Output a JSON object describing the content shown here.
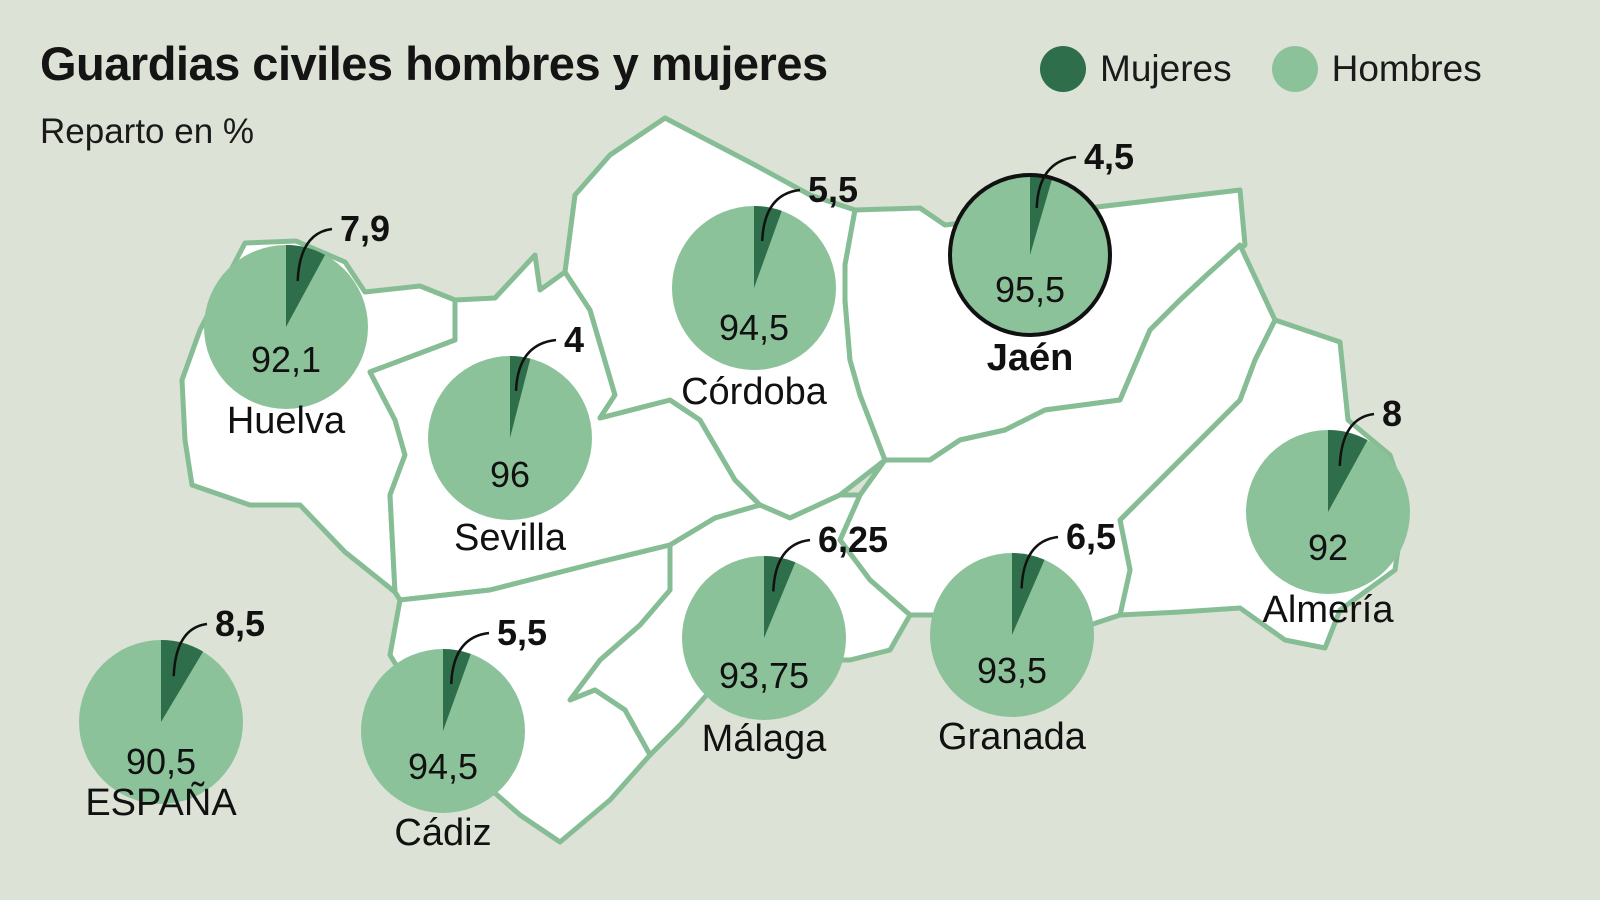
{
  "colors": {
    "background": "#dde2d6",
    "map_fill": "#ffffff",
    "map_stroke": "#86bd95",
    "mujeres": "#2f6e4a",
    "hombres": "#8cc29a",
    "highlight_ring": "#111111"
  },
  "chart_data": {
    "type": "pie",
    "title": "Guardias civiles hombres y mujeres",
    "subtitle": "Reparto en %",
    "legend": {
      "placement": "top-right",
      "entries": [
        {
          "name": "Mujeres",
          "color": "#2f6e4a"
        },
        {
          "name": "Hombres",
          "color": "#8cc29a"
        }
      ]
    },
    "pies": [
      {
        "region": "Huelva",
        "mujeres": 7.9,
        "hombres": 92.1,
        "mujeres_label": "7,9",
        "hombres_label": "92,1",
        "highlight": false
      },
      {
        "region": "Sevilla",
        "mujeres": 4,
        "hombres": 96,
        "mujeres_label": "4",
        "hombres_label": "96",
        "highlight": false
      },
      {
        "region": "Córdoba",
        "mujeres": 5.5,
        "hombres": 94.5,
        "mujeres_label": "5,5",
        "hombres_label": "94,5",
        "highlight": false
      },
      {
        "region": "Jaén",
        "mujeres": 4.5,
        "hombres": 95.5,
        "mujeres_label": "4,5",
        "hombres_label": "95,5",
        "highlight": true
      },
      {
        "region": "Almería",
        "mujeres": 8,
        "hombres": 92,
        "mujeres_label": "8",
        "hombres_label": "92",
        "highlight": false
      },
      {
        "region": "Granada",
        "mujeres": 6.5,
        "hombres": 93.5,
        "mujeres_label": "6,5",
        "hombres_label": "93,5",
        "highlight": false
      },
      {
        "region": "Málaga",
        "mujeres": 6.25,
        "hombres": 93.75,
        "mujeres_label": "6,25",
        "hombres_label": "93,75",
        "highlight": false
      },
      {
        "region": "Cádiz",
        "mujeres": 5.5,
        "hombres": 94.5,
        "mujeres_label": "5,5",
        "hombres_label": "94,5",
        "highlight": false
      },
      {
        "region": "ESPAÑA",
        "mujeres": 8.5,
        "hombres": 90.5,
        "mujeres_label": "8,5",
        "hombres_label": "90,5",
        "highlight": false
      }
    ]
  }
}
